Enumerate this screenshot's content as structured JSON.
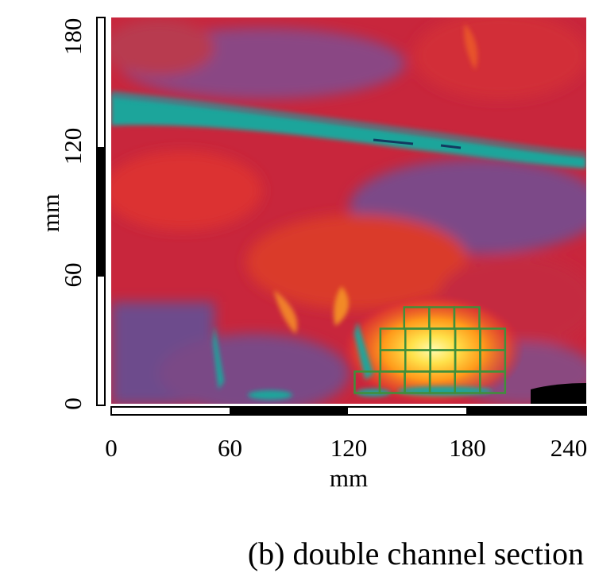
{
  "chart_data": {
    "type": "heatmap",
    "title": "",
    "xlabel": "mm",
    "ylabel": "mm",
    "xlim": [
      0,
      240
    ],
    "ylim": [
      0,
      180
    ],
    "x_ticks": [
      "0",
      "60",
      "120",
      "180",
      "240"
    ],
    "y_ticks": [
      "0",
      "60",
      "120",
      "180"
    ],
    "grid": false,
    "colormap": [
      "#1aa89e",
      "#6b4b8e",
      "#c8243a",
      "#e8462a",
      "#ff9a1a",
      "#fff07a"
    ],
    "hot_region_grid": {
      "color": "#3f8f3a",
      "cell_width_mm": 12.7,
      "cell_height_mm": 10,
      "rows": [
        {
          "y": [
            35,
            45
          ],
          "x": [
            148,
            186
          ]
        },
        {
          "y": [
            25,
            35
          ],
          "x": [
            136,
            199
          ]
        },
        {
          "y": [
            15,
            25
          ],
          "x": [
            136,
            199
          ]
        },
        {
          "y": [
            5,
            15
          ],
          "x": [
            123,
            199
          ]
        }
      ]
    }
  },
  "caption": "(b) double channel section"
}
